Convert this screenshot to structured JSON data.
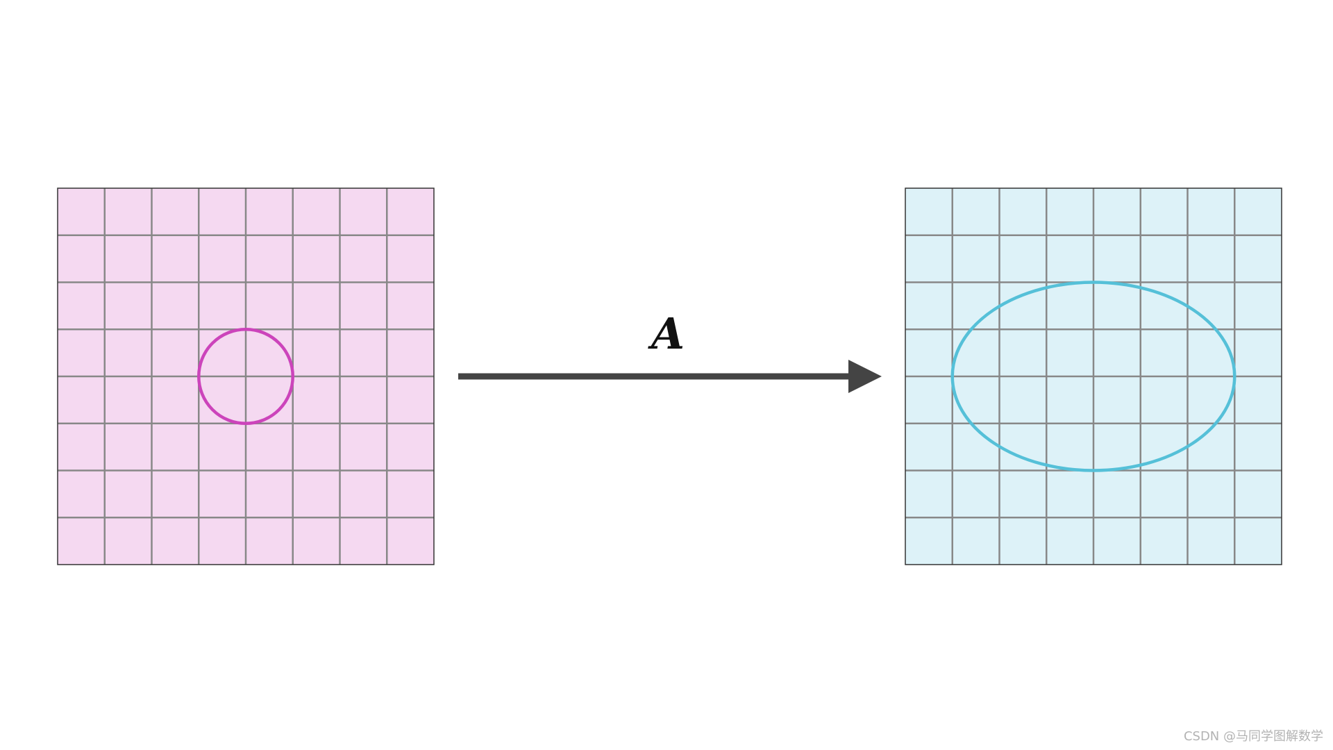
{
  "diagram": {
    "transform_label": "A",
    "grid": {
      "rows": 8,
      "cols": 8
    },
    "source": {
      "fill": "#f5d9f1",
      "shape": "circle",
      "shape_color": "#cc44bb",
      "radius_cells": 1,
      "center_cells": [
        4,
        4
      ]
    },
    "target": {
      "fill": "#ddf2f8",
      "shape": "ellipse",
      "shape_color": "#55c0d8",
      "radius_x_cells": 3,
      "radius_y_cells": 2,
      "center_cells": [
        4,
        4
      ]
    },
    "grid_line_color": "#888888",
    "arrow_color": "#444444"
  },
  "watermark": "CSDN @马同学图解数学"
}
